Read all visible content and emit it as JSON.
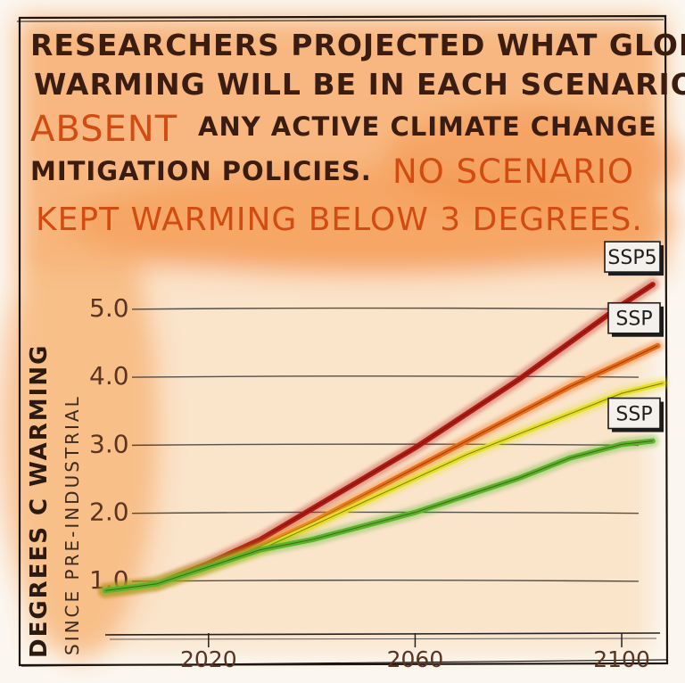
{
  "headline": {
    "line1": "RESEARCHERS PROJECTED WHAT GLOBAL",
    "line2": "WARMING WILL BE IN EACH SCENARIO",
    "line3_accent": "ABSENT",
    "line3_rest": "ANY ACTIVE CLIMATE CHANGE",
    "line4_start": "MITIGATION POLICIES.",
    "line4_accent": "NO SCENARIO",
    "line5_accent": "KEPT WARMING BELOW 3 DEGREES."
  },
  "colors": {
    "ssp5": "#b31a12",
    "orange": "#ee6a12",
    "yellow": "#e2e020",
    "green": "#58b52a",
    "watercolor": "#f5a25a",
    "ink": "#2a1a10"
  },
  "chart_data": {
    "type": "line",
    "xlabel": "",
    "ylabel": "DEGREES C WARMING",
    "ylabel_sub": "SINCE PRE-INDUSTRIAL",
    "xlim": [
      2000,
      2105
    ],
    "ylim": [
      0.2,
      5.6
    ],
    "x_ticks": [
      2020,
      2060,
      2100
    ],
    "y_ticks": [
      "1.0",
      "2.0",
      "3.0",
      "4.0",
      "5.0"
    ],
    "y_tick_values": [
      1.0,
      2.0,
      3.0,
      4.0,
      5.0
    ],
    "grid": true,
    "series": [
      {
        "name": "SSP5",
        "color_key": "ssp5",
        "x": [
          2000,
          2010,
          2020,
          2030,
          2040,
          2050,
          2060,
          2070,
          2080,
          2090,
          2100,
          2106
        ],
        "y": [
          0.85,
          0.95,
          1.25,
          1.6,
          2.05,
          2.5,
          2.95,
          3.45,
          3.95,
          4.5,
          5.05,
          5.35
        ]
      },
      {
        "name": "SSP",
        "color_key": "orange",
        "x": [
          2000,
          2010,
          2020,
          2030,
          2040,
          2050,
          2060,
          2070,
          2080,
          2090,
          2100,
          2107
        ],
        "y": [
          0.85,
          0.95,
          1.2,
          1.5,
          1.85,
          2.25,
          2.65,
          3.05,
          3.45,
          3.85,
          4.2,
          4.45
        ]
      },
      {
        "name": "",
        "color_key": "yellow",
        "x": [
          2000,
          2010,
          2020,
          2030,
          2040,
          2050,
          2060,
          2070,
          2080,
          2090,
          2100,
          2108
        ],
        "y": [
          0.85,
          0.95,
          1.2,
          1.45,
          1.8,
          2.15,
          2.5,
          2.85,
          3.15,
          3.45,
          3.75,
          3.9
        ]
      },
      {
        "name": "SSP",
        "color_key": "green",
        "x": [
          2000,
          2010,
          2020,
          2030,
          2040,
          2050,
          2060,
          2070,
          2080,
          2090,
          2100,
          2106
        ],
        "y": [
          0.85,
          0.95,
          1.2,
          1.45,
          1.6,
          1.8,
          2.0,
          2.25,
          2.5,
          2.8,
          3.0,
          3.05
        ]
      }
    ],
    "labels": [
      {
        "text": "SSP5",
        "series": 0
      },
      {
        "text": "SSP",
        "series": 1
      },
      {
        "text": "SSP",
        "series": 3
      }
    ]
  }
}
